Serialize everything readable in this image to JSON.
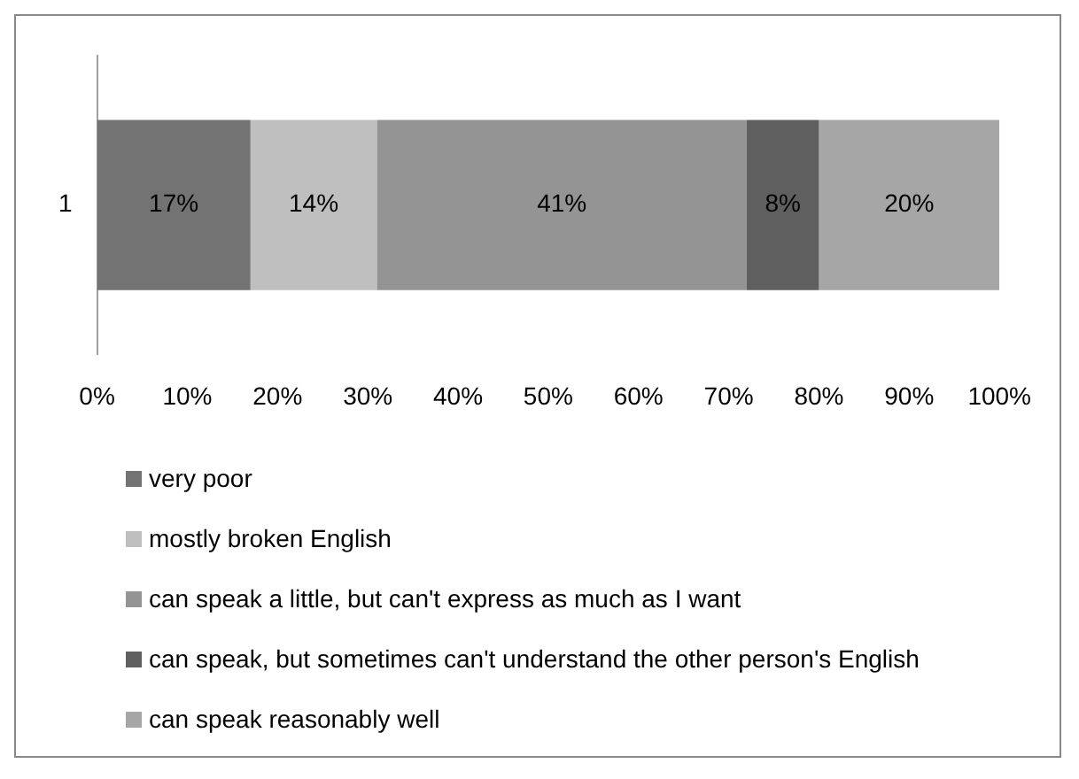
{
  "chart_data": {
    "type": "bar",
    "orientation": "horizontal",
    "stacked": true,
    "categories": [
      "1"
    ],
    "series": [
      {
        "name": "very poor",
        "color": "#737373",
        "values": [
          17
        ],
        "value_labels": [
          "17%"
        ]
      },
      {
        "name": "mostly broken English",
        "color": "#bfbfbf",
        "values": [
          14
        ],
        "value_labels": [
          "14%"
        ]
      },
      {
        "name": "can speak a little, but can't express as much as I want",
        "color": "#949494",
        "values": [
          41
        ],
        "value_labels": [
          "41%"
        ]
      },
      {
        "name": "can speak, but sometimes can't understand  the other person's English",
        "color": "#5f5f5f",
        "values": [
          8
        ],
        "value_labels": [
          "8%"
        ]
      },
      {
        "name": "can speak reasonably well",
        "color": "#a6a6a6",
        "values": [
          20
        ],
        "value_labels": [
          "20%"
        ]
      }
    ],
    "xlim": [
      0,
      100
    ],
    "xticks": [
      {
        "value": 0,
        "label": "0%"
      },
      {
        "value": 10,
        "label": "10%"
      },
      {
        "value": 20,
        "label": "20%"
      },
      {
        "value": 30,
        "label": "30%"
      },
      {
        "value": 40,
        "label": "40%"
      },
      {
        "value": 50,
        "label": "50%"
      },
      {
        "value": 60,
        "label": "60%"
      },
      {
        "value": 70,
        "label": "70%"
      },
      {
        "value": 80,
        "label": "80%"
      },
      {
        "value": 90,
        "label": "90%"
      },
      {
        "value": 100,
        "label": "100%"
      }
    ],
    "grid": false,
    "legend": "bottom"
  }
}
